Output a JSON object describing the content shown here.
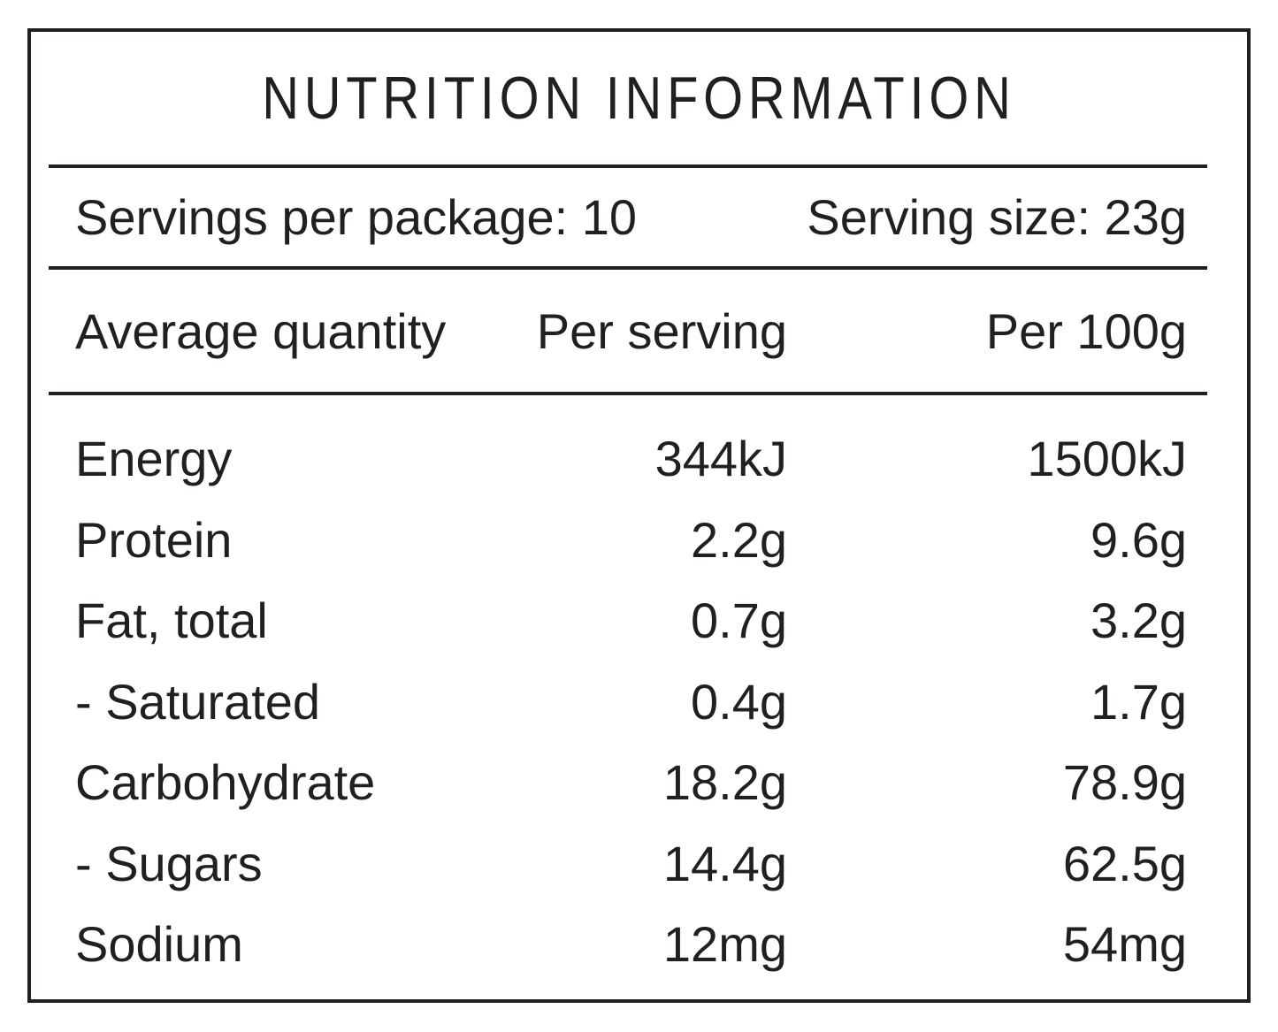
{
  "colors": {
    "ink": "#231f20",
    "background": "#ffffff"
  },
  "panel": {
    "title": "NUTRITION INFORMATION",
    "servings_line": {
      "left": "Servings per package: 10",
      "right": "Serving size: 23g"
    },
    "columns": {
      "label": "Average quantity",
      "per_serving": "Per serving",
      "per_100g": "Per 100g"
    },
    "rows": [
      {
        "label": "Energy",
        "per_serving": "344kJ",
        "per_100g": "1500kJ"
      },
      {
        "label": "Protein",
        "per_serving": "2.2g",
        "per_100g": "9.6g"
      },
      {
        "label": "Fat, total",
        "per_serving": "0.7g",
        "per_100g": "3.2g"
      },
      {
        "label": "- Saturated",
        "per_serving": "0.4g",
        "per_100g": "1.7g"
      },
      {
        "label": "Carbohydrate",
        "per_serving": "18.2g",
        "per_100g": "78.9g"
      },
      {
        "label": "- Sugars",
        "per_serving": "14.4g",
        "per_100g": "62.5g"
      },
      {
        "label": "Sodium",
        "per_serving": "12mg",
        "per_100g": "54mg"
      }
    ]
  }
}
